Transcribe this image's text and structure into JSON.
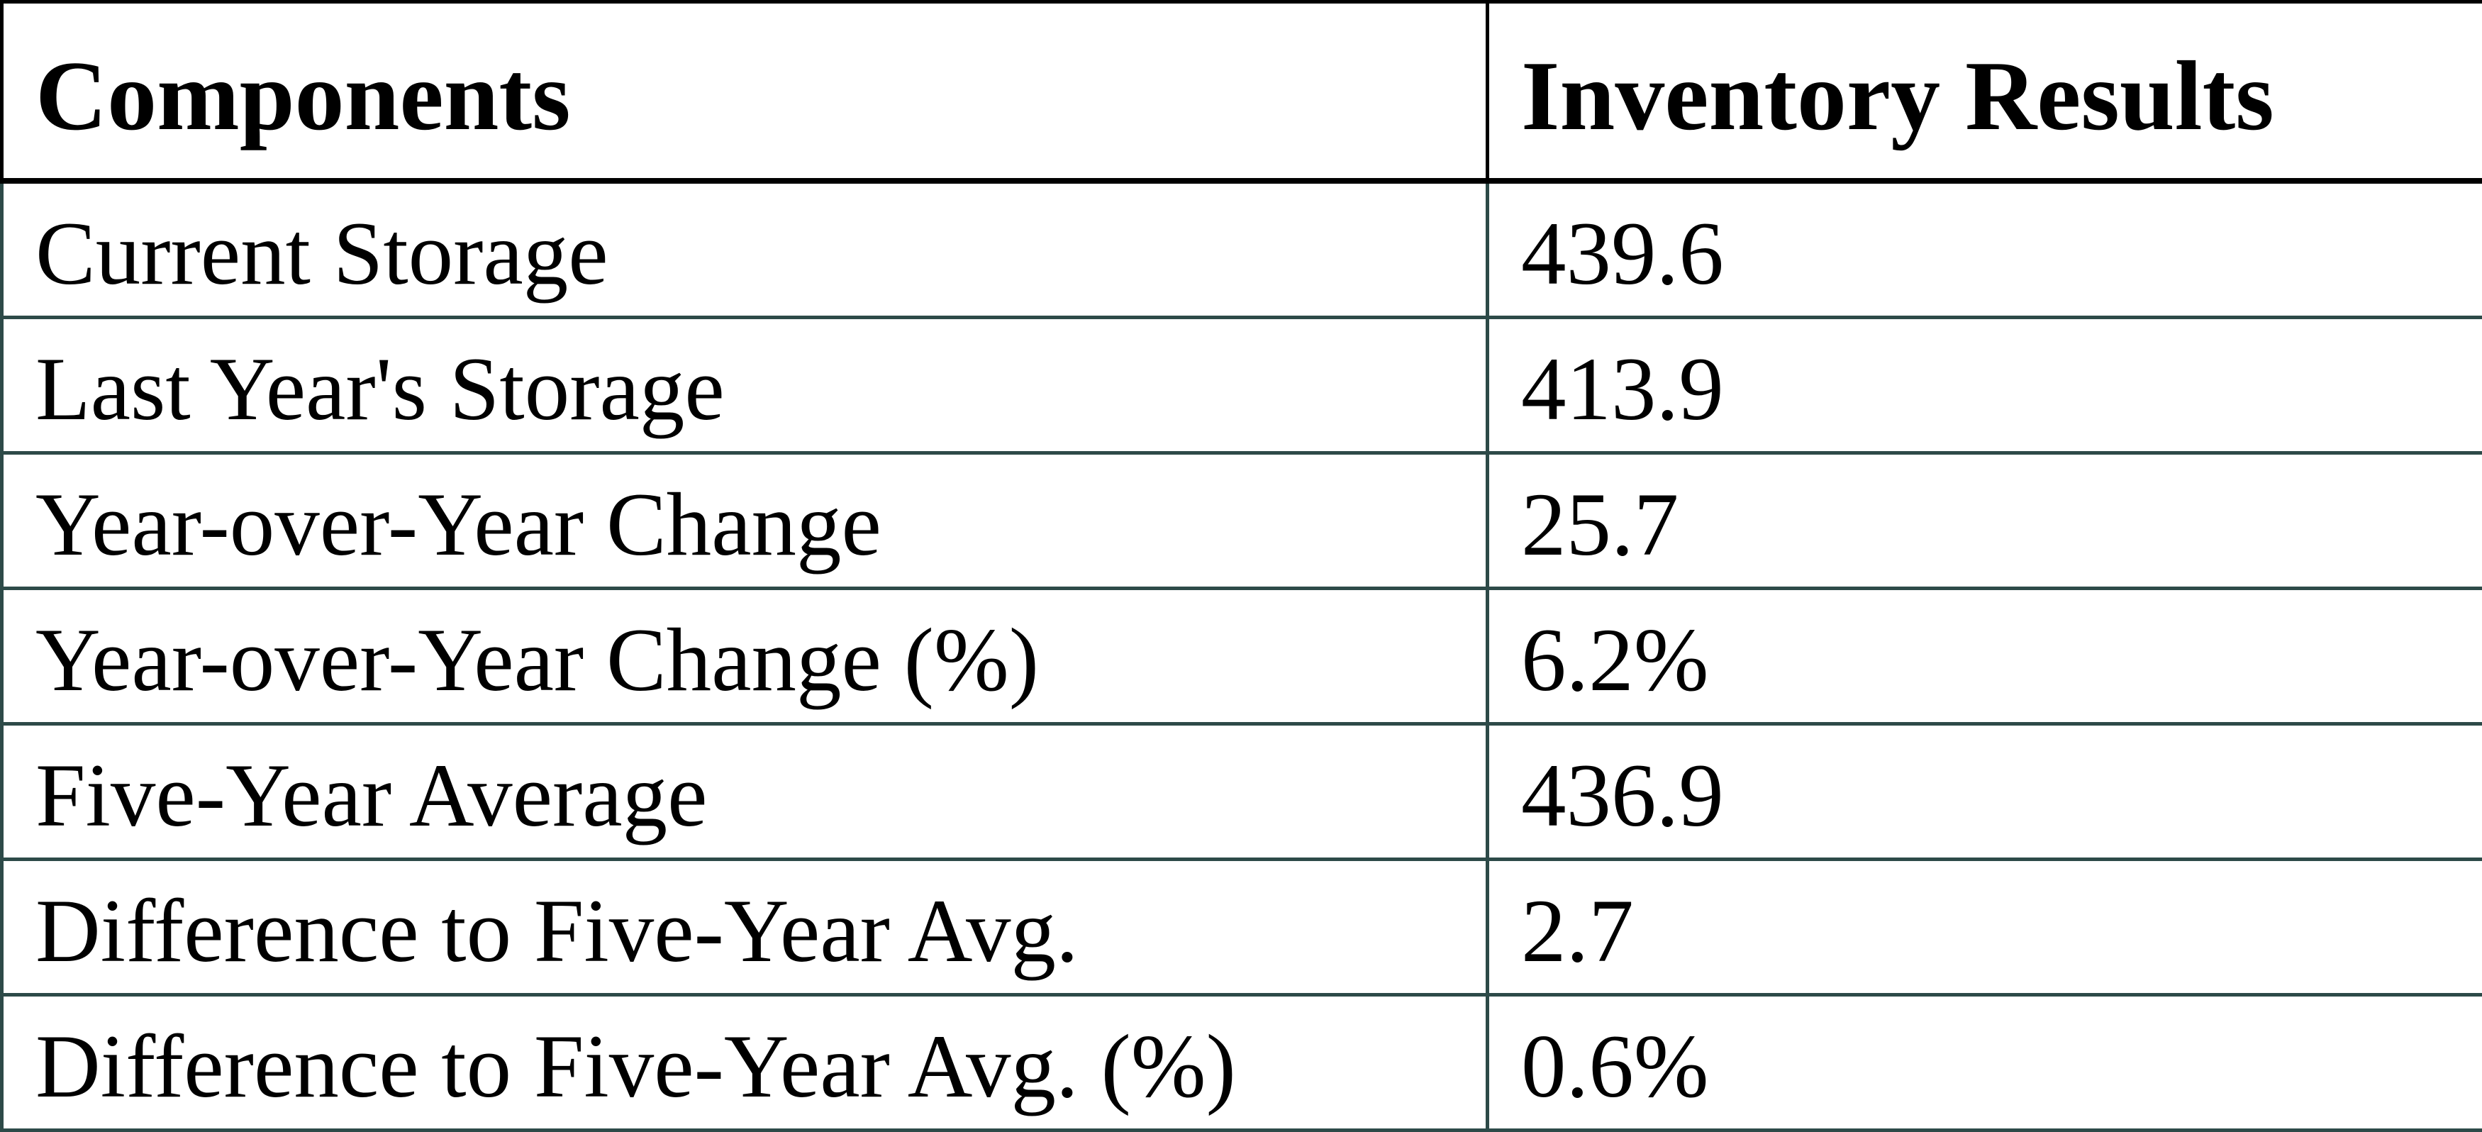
{
  "table": {
    "columns": [
      {
        "label": "Components"
      },
      {
        "label": "Inventory Results"
      }
    ],
    "rows": [
      {
        "label": "Current Storage",
        "value": "439.6"
      },
      {
        "label": "Last Year's Storage",
        "value": "413.9"
      },
      {
        "label": "Year-over-Year Change",
        "value": "25.7"
      },
      {
        "label": "Year-over-Year Change (%)",
        "value": "6.2%"
      },
      {
        "label": "Five-Year Average",
        "value": "436.9"
      },
      {
        "label": "Difference to Five-Year Avg.",
        "value": "2.7"
      },
      {
        "label": "Difference to Five-Year Avg. (%)",
        "value": "0.6%"
      }
    ]
  },
  "chart_data": {
    "type": "table",
    "columns": [
      "Components",
      "Inventory Results"
    ],
    "rows": [
      [
        "Current Storage",
        "439.6"
      ],
      [
        "Last Year's Storage",
        "413.9"
      ],
      [
        "Year-over-Year Change",
        "25.7"
      ],
      [
        "Year-over-Year Change (%)",
        "6.2%"
      ],
      [
        "Five-Year Average",
        "436.9"
      ],
      [
        "Difference to Five-Year Avg.",
        "2.7"
      ],
      [
        "Difference to Five-Year Avg. (%)",
        "0.6%"
      ]
    ],
    "notes": {
      "numeric_values": [
        439.6,
        413.9,
        25.7,
        6.2,
        436.9,
        2.7,
        0.6
      ],
      "percent_rows": [
        "Year-over-Year Change (%)",
        "Difference to Five-Year Avg. (%)"
      ]
    }
  },
  "colors": {
    "background": "#ffffff",
    "text": "#000000",
    "header_border": "#000000",
    "grid_line": "#2d4a48"
  }
}
